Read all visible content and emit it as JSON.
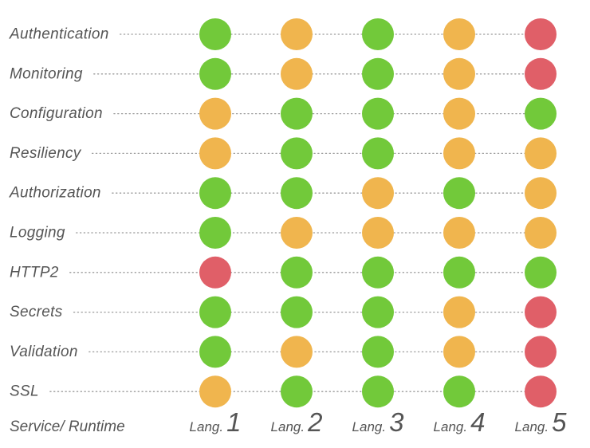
{
  "chart_data": {
    "type": "table",
    "corner_label": "Service/ Runtime",
    "rows": [
      "Authentication",
      "Monitoring",
      "Configuration",
      "Resiliency",
      "Authorization",
      "Logging",
      "HTTP2",
      "Secrets",
      "Validation",
      "SSL"
    ],
    "columns": [
      {
        "prefix": "Lang.",
        "number": "1"
      },
      {
        "prefix": "Lang.",
        "number": "2"
      },
      {
        "prefix": "Lang.",
        "number": "3"
      },
      {
        "prefix": "Lang.",
        "number": "4"
      },
      {
        "prefix": "Lang.",
        "number": "5"
      }
    ],
    "status_colors": {
      "green": "#72c93a",
      "orange": "#f0b54e",
      "red": "#e05f68"
    },
    "values": [
      [
        "green",
        "orange",
        "green",
        "orange",
        "red"
      ],
      [
        "green",
        "orange",
        "green",
        "orange",
        "red"
      ],
      [
        "orange",
        "green",
        "green",
        "orange",
        "green"
      ],
      [
        "orange",
        "green",
        "green",
        "orange",
        "orange"
      ],
      [
        "green",
        "green",
        "orange",
        "green",
        "orange"
      ],
      [
        "green",
        "orange",
        "orange",
        "orange",
        "orange"
      ],
      [
        "red",
        "green",
        "green",
        "green",
        "green"
      ],
      [
        "green",
        "green",
        "green",
        "orange",
        "red"
      ],
      [
        "green",
        "orange",
        "green",
        "orange",
        "red"
      ],
      [
        "orange",
        "green",
        "green",
        "green",
        "red"
      ]
    ]
  }
}
